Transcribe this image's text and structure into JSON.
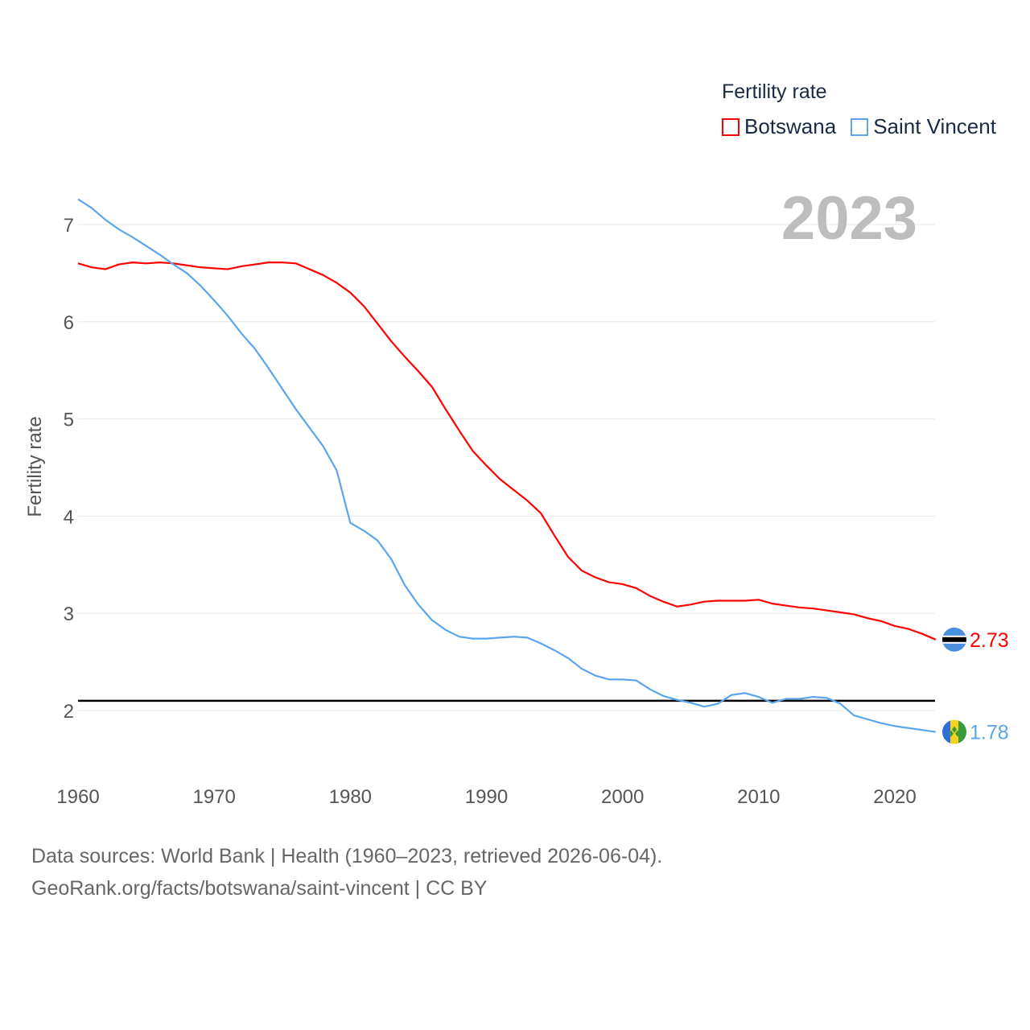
{
  "legend": {
    "title": "Fertility rate",
    "items": [
      {
        "label": "Botswana",
        "color": "#ff0000"
      },
      {
        "label": "Saint Vincent",
        "color": "#5aa5ee"
      }
    ]
  },
  "year_label": "2023",
  "source": {
    "line1": "Data sources: World Bank | Health (1960–2023, retrieved 2026-06-04).",
    "line2": "GeoRank.org/facts/botswana/saint-vincent | CC BY"
  },
  "chart_data": {
    "type": "line",
    "title": "Fertility rate",
    "xlabel": "",
    "ylabel": "Fertility rate",
    "xlim": [
      1960,
      2023
    ],
    "ylim": [
      1.4,
      7.4
    ],
    "x_ticks": [
      "1960",
      "1970",
      "1980",
      "1990",
      "2000",
      "2010",
      "2020"
    ],
    "y_ticks": [
      "2",
      "3",
      "4",
      "5",
      "6",
      "7"
    ],
    "grid": true,
    "legend_position": "top-right",
    "reference_line": 2.1,
    "x": [
      1960,
      1961,
      1962,
      1963,
      1964,
      1965,
      1966,
      1967,
      1968,
      1969,
      1970,
      1971,
      1972,
      1973,
      1974,
      1975,
      1976,
      1977,
      1978,
      1979,
      1980,
      1981,
      1982,
      1983,
      1984,
      1985,
      1986,
      1987,
      1988,
      1989,
      1990,
      1991,
      1992,
      1993,
      1994,
      1995,
      1996,
      1997,
      1998,
      1999,
      2000,
      2001,
      2002,
      2003,
      2004,
      2005,
      2006,
      2007,
      2008,
      2009,
      2010,
      2011,
      2012,
      2013,
      2014,
      2015,
      2016,
      2017,
      2018,
      2019,
      2020,
      2021,
      2022,
      2023
    ],
    "series": [
      {
        "name": "Botswana",
        "color": "#ff0000",
        "end_label": "2.73",
        "values": [
          6.6,
          6.56,
          6.54,
          6.59,
          6.61,
          6.6,
          6.61,
          6.6,
          6.58,
          6.56,
          6.55,
          6.54,
          6.57,
          6.59,
          6.61,
          6.61,
          6.6,
          6.54,
          6.48,
          6.4,
          6.3,
          6.16,
          5.98,
          5.8,
          5.64,
          5.49,
          5.33,
          5.1,
          4.88,
          4.67,
          4.52,
          4.38,
          4.27,
          4.16,
          4.03,
          3.8,
          3.58,
          3.44,
          3.37,
          3.32,
          3.3,
          3.26,
          3.18,
          3.12,
          3.07,
          3.09,
          3.12,
          3.13,
          3.13,
          3.13,
          3.14,
          3.1,
          3.08,
          3.06,
          3.05,
          3.03,
          3.01,
          2.99,
          2.95,
          2.92,
          2.87,
          2.84,
          2.79,
          2.73
        ]
      },
      {
        "name": "Saint Vincent",
        "color": "#5aa5ee",
        "end_label": "1.78",
        "values": [
          7.26,
          7.17,
          7.05,
          6.95,
          6.87,
          6.78,
          6.69,
          6.59,
          6.5,
          6.37,
          6.22,
          6.06,
          5.88,
          5.72,
          5.52,
          5.31,
          5.1,
          4.91,
          4.72,
          4.47,
          3.93,
          3.85,
          3.75,
          3.56,
          3.29,
          3.09,
          2.93,
          2.83,
          2.76,
          2.74,
          2.74,
          2.75,
          2.76,
          2.75,
          2.69,
          2.62,
          2.54,
          2.43,
          2.36,
          2.32,
          2.32,
          2.31,
          2.22,
          2.15,
          2.11,
          2.08,
          2.04,
          2.07,
          2.16,
          2.18,
          2.14,
          2.08,
          2.12,
          2.12,
          2.14,
          2.13,
          2.07,
          1.95,
          1.91,
          1.87,
          1.84,
          1.82,
          1.8,
          1.78
        ]
      }
    ]
  }
}
